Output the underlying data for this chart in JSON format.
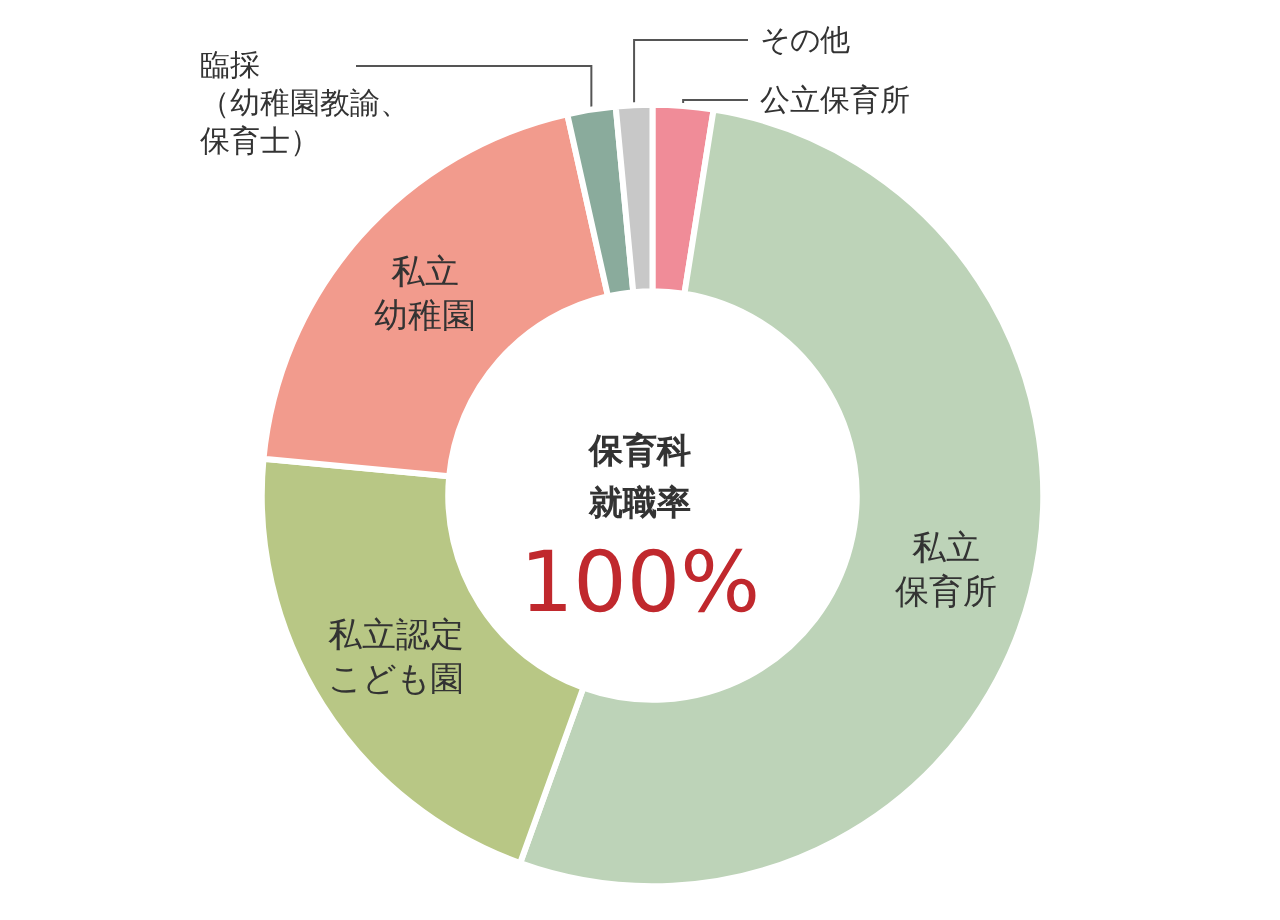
{
  "chart_data": {
    "type": "donut",
    "categories": [
      "公立保育所",
      "私立保育所",
      "私立認定こども園",
      "私立幼稚園",
      "臨採（幼稚園教諭、保育士）",
      "その他"
    ],
    "values": [
      2.5,
      53,
      21,
      20,
      2,
      1.5
    ],
    "colors": [
      "#f08c98",
      "#bdd3b8",
      "#b8c785",
      "#f29b8d",
      "#8aab9c",
      "#c8c8c8"
    ],
    "annotations": [
      "保育科就職率",
      "100%"
    ],
    "legend": false
  }
}
